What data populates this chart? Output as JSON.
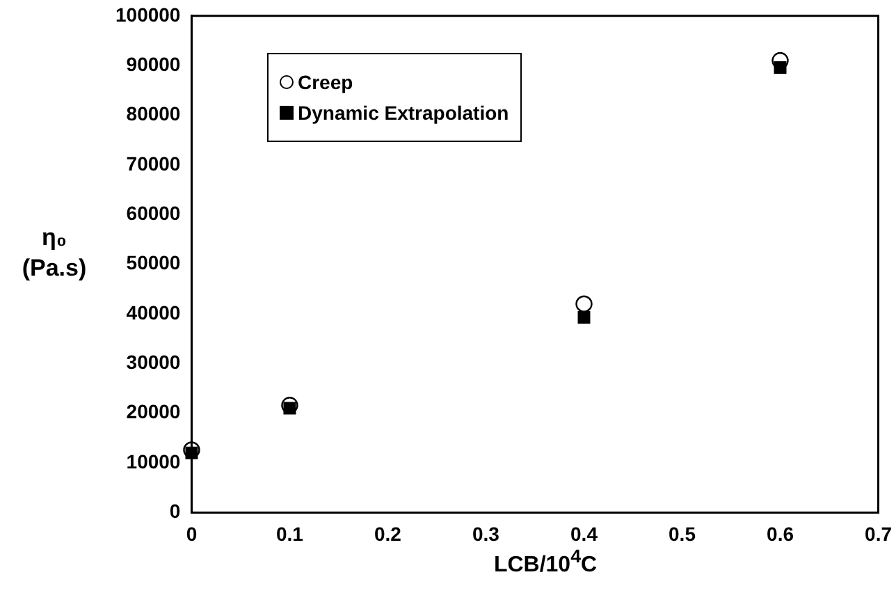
{
  "chart_data": {
    "type": "scatter",
    "xlabel": "LCB/10$^{4}$C",
    "ylabel": "η₀ (Pa.s)",
    "xlim": [
      0,
      0.7
    ],
    "xticks": [
      0,
      0.1,
      0.2,
      0.3,
      0.4,
      0.5,
      0.6,
      0.7
    ],
    "ylim": [
      0,
      100000
    ],
    "yticks": [
      0,
      10000,
      20000,
      30000,
      40000,
      50000,
      60000,
      70000,
      80000,
      90000,
      100000
    ],
    "grid": false,
    "legend": "top left",
    "series": [
      {
        "name": "Creep",
        "color": "#000000",
        "marker": "circle",
        "x": [
          0,
          0.1,
          0.4,
          0.6
        ],
        "values": [
          12600,
          21600,
          42000,
          91000
        ]
      },
      {
        "name": "Dynamic Extrapolation",
        "color": "#000000",
        "marker": "square",
        "x": [
          0,
          0.1,
          0.4,
          0.6
        ],
        "values": [
          12000,
          21000,
          39300,
          89600
        ]
      }
    ]
  }
}
